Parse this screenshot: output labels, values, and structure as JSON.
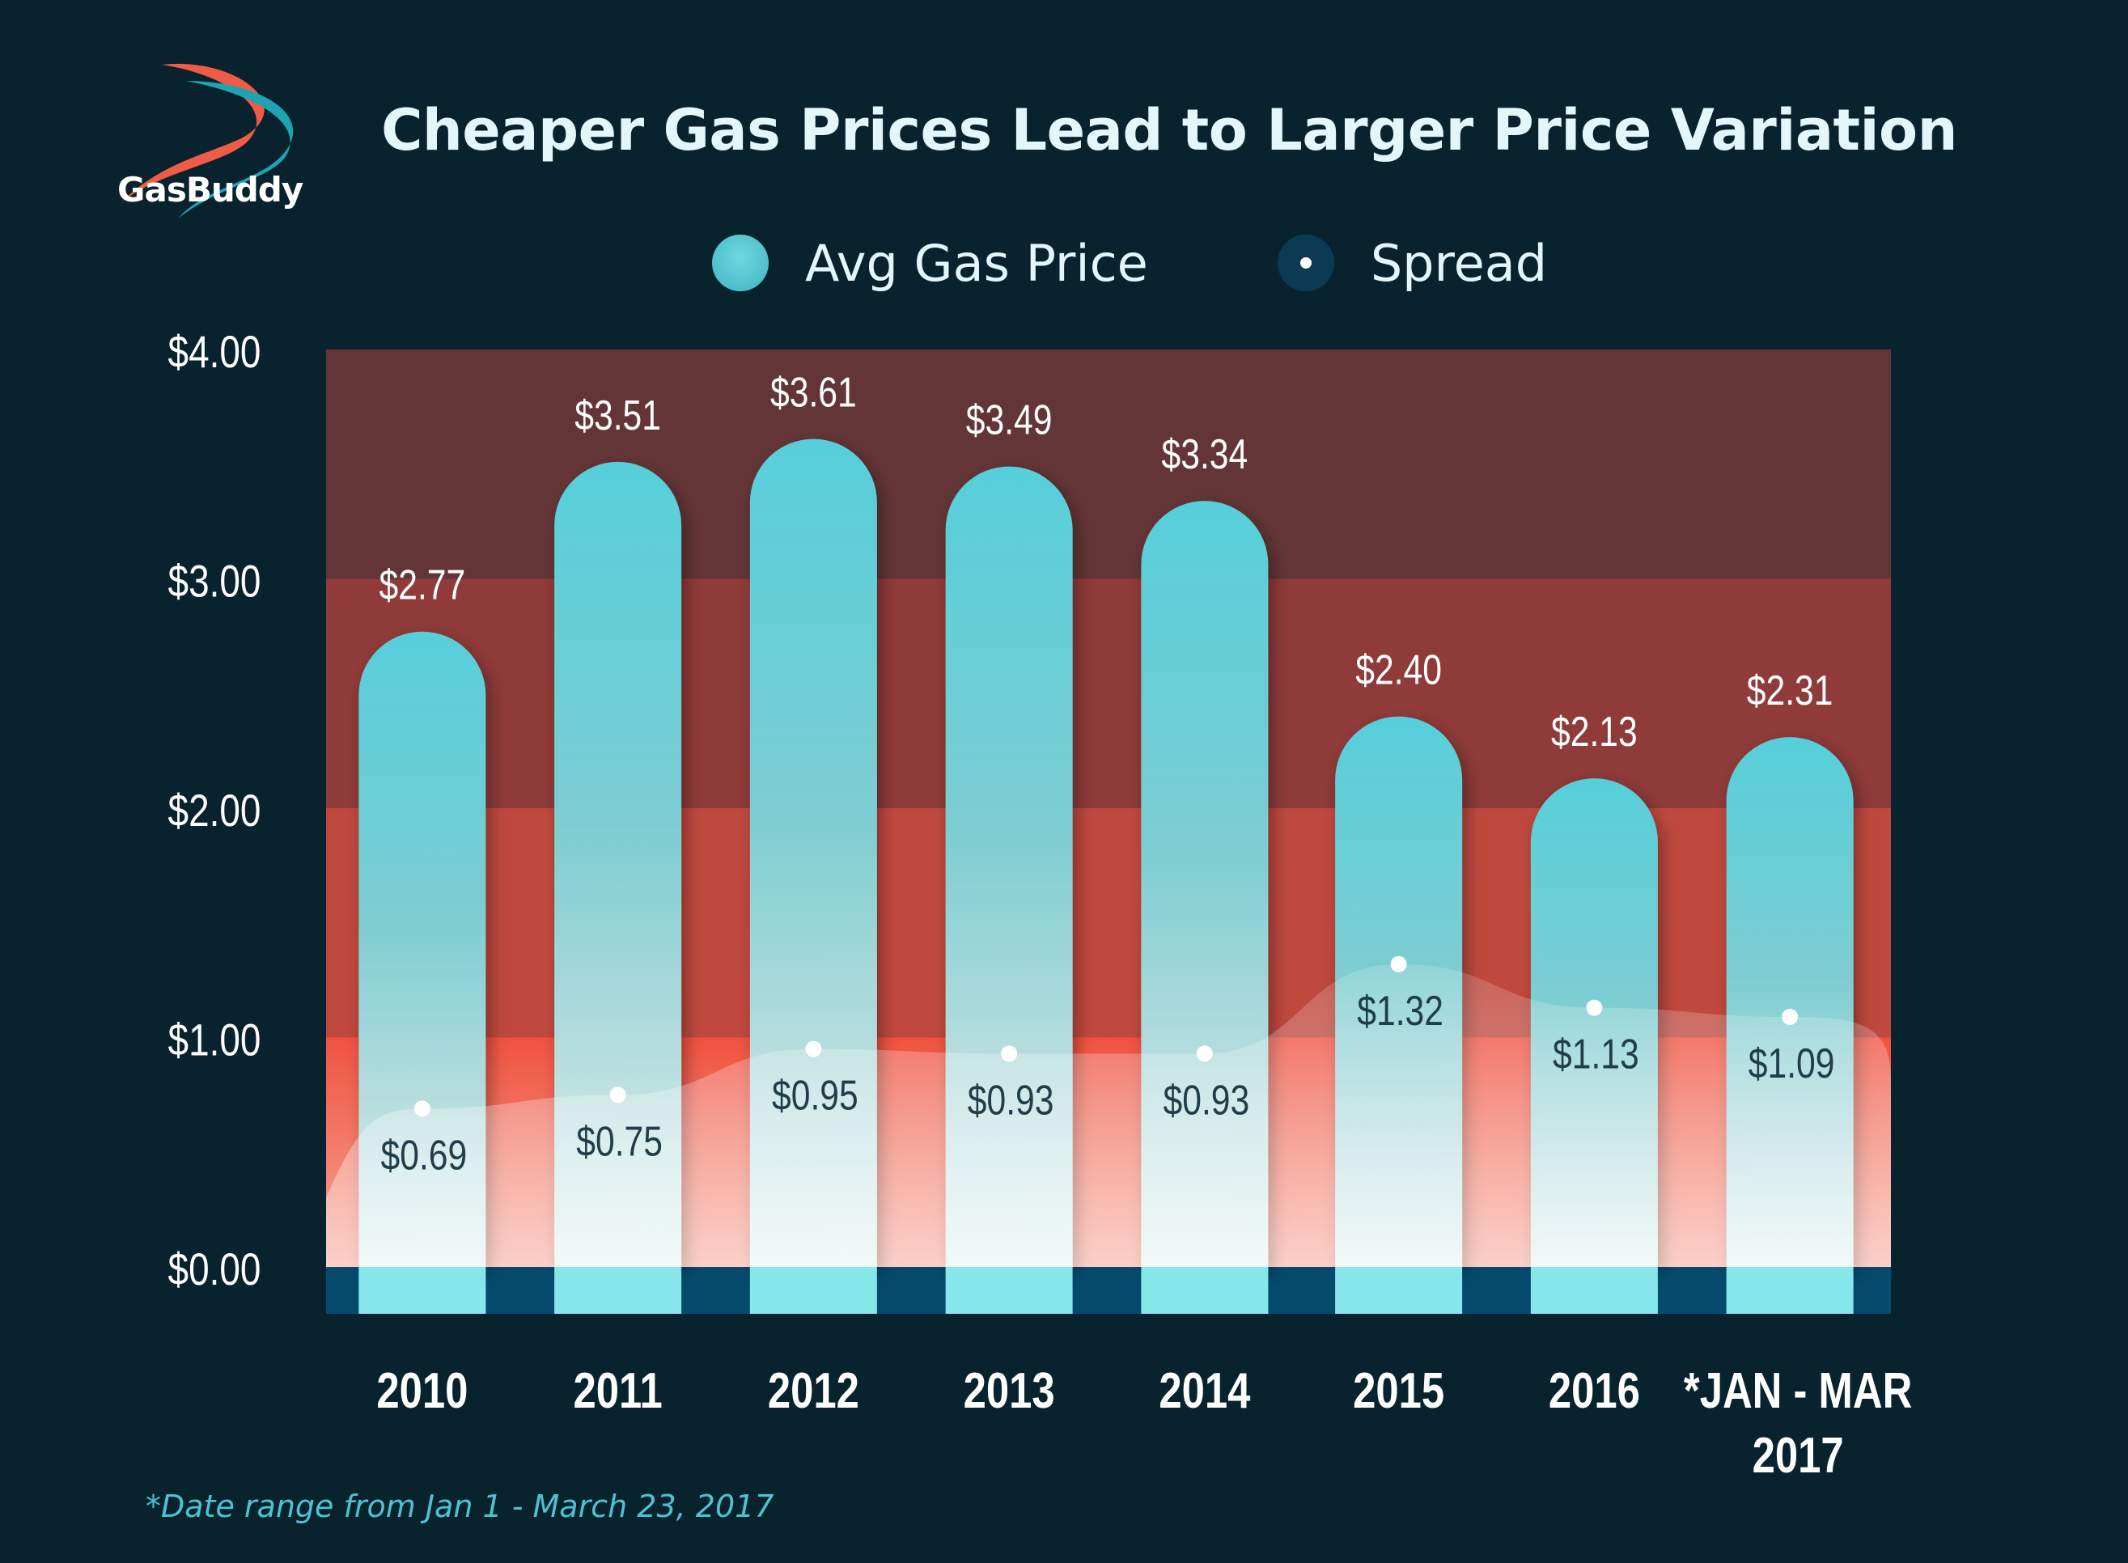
{
  "brand": {
    "logo_text": "GasBuddy"
  },
  "chart_data": {
    "type": "bar",
    "title": "Cheaper Gas Prices Lead to Larger Price Variation",
    "categories": [
      "2010",
      "2011",
      "2012",
      "2013",
      "2014",
      "2015",
      "2016",
      "*JAN - MAR 2017"
    ],
    "category_lines": [
      [
        "2010"
      ],
      [
        "2011"
      ],
      [
        "2012"
      ],
      [
        "2013"
      ],
      [
        "2014"
      ],
      [
        "2015"
      ],
      [
        "2016"
      ],
      [
        "*JAN - MAR",
        "2017"
      ]
    ],
    "series": [
      {
        "name": "Avg Gas Price",
        "values": [
          2.77,
          3.51,
          3.61,
          3.49,
          3.34,
          2.4,
          2.13,
          2.31
        ],
        "labels": [
          "$2.77",
          "$3.51",
          "$3.61",
          "$3.49",
          "$3.34",
          "$2.40",
          "$2.13",
          "$2.31"
        ],
        "color": "#56cdd8"
      },
      {
        "name": "Spread",
        "type": "line",
        "values": [
          0.69,
          0.75,
          0.95,
          0.93,
          0.93,
          1.32,
          1.13,
          1.09
        ],
        "labels": [
          "$0.69",
          "$0.75",
          "$0.95",
          "$0.93",
          "$0.93",
          "$1.32",
          "$1.13",
          "$1.09"
        ],
        "color": "#ffffff"
      }
    ],
    "yticks": [
      "$0.00",
      "$1.00",
      "$2.00",
      "$3.00",
      "$4.00"
    ],
    "ylim": [
      0,
      4
    ],
    "grid": false,
    "legend": "top-center",
    "bands": [
      "#f08a78",
      "#c0493e",
      "#8f3b39",
      "#643536"
    ]
  },
  "footnote": "*Date range from Jan 1 - March 23, 2017"
}
